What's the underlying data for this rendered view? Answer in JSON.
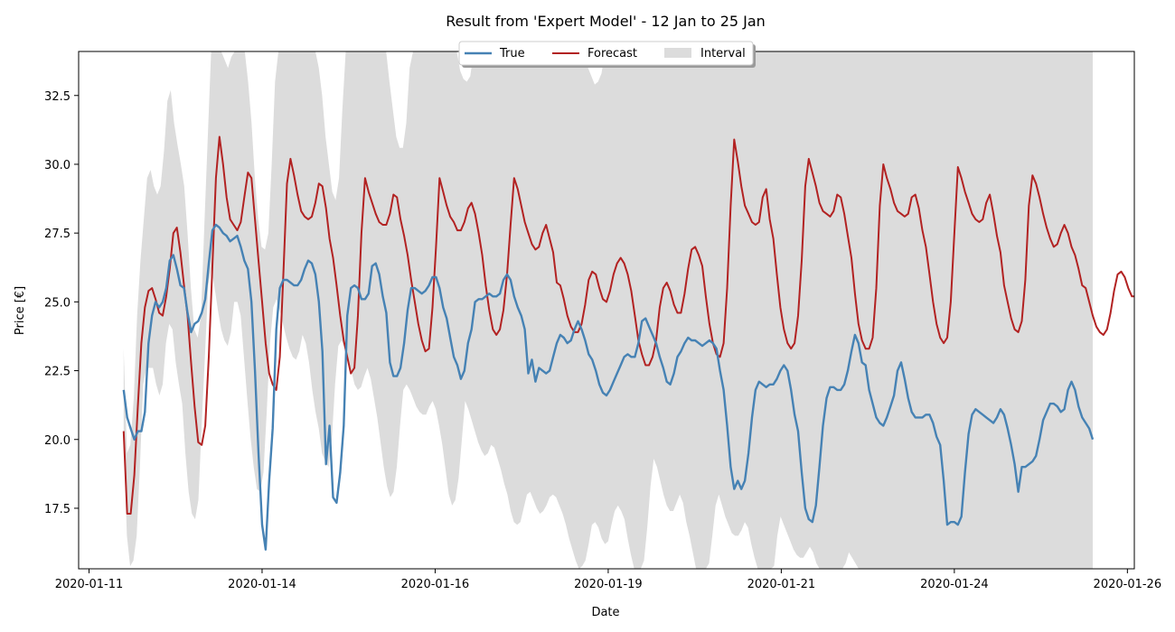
{
  "chart_data": {
    "type": "line",
    "title": "Result from 'Expert Model' - 12 Jan to 25 Jan",
    "xlabel": "Date",
    "ylabel": "Price [€]",
    "x_ticks": [
      "2020-01-11",
      "2020-01-14",
      "2020-01-16",
      "2020-01-19",
      "2020-01-21",
      "2020-01-24",
      "2020-01-26"
    ],
    "x_tick_days": [
      11,
      13.5,
      16,
      18.5,
      21,
      23.5,
      26
    ],
    "y_ticks": [
      "17.5",
      "20.0",
      "22.5",
      "25.0",
      "27.5",
      "30.0",
      "32.5"
    ],
    "xlim_days": [
      10.85,
      26.1
    ],
    "ylim": [
      15.3,
      34.1
    ],
    "grid": false,
    "legend": {
      "placement": "top-center",
      "entries": [
        "True",
        "Forecast",
        "Interval"
      ]
    },
    "colors": {
      "true": "#4682b4",
      "forecast": "#b22222",
      "interval": "#dcdcdc"
    },
    "x_start_day": 11.5,
    "x_end_day": 25.5,
    "series": [
      {
        "name": "True",
        "values": [
          21.8,
          20.8,
          20.4,
          20.0,
          20.3,
          20.3,
          21.0,
          23.5,
          24.5,
          25.0,
          24.8,
          25.0,
          25.5,
          26.5,
          26.7,
          26.2,
          25.6,
          25.5,
          24.6,
          23.9,
          24.2,
          24.3,
          24.6,
          25.1,
          26.4,
          27.6,
          27.8,
          27.7,
          27.5,
          27.4,
          27.2,
          27.3,
          27.4,
          27.0,
          26.5,
          26.2,
          25.0,
          22.5,
          19.5,
          16.9,
          16.0,
          18.5,
          20.4,
          24.0,
          25.5,
          25.8,
          25.8,
          25.7,
          25.6,
          25.6,
          25.8,
          26.2,
          26.5,
          26.4,
          26.0,
          25.0,
          23.2,
          19.1,
          20.5,
          17.9,
          17.7,
          18.8,
          20.5,
          24.5,
          25.5,
          25.6,
          25.5,
          25.1,
          25.1,
          25.3,
          26.3,
          26.4,
          26.0,
          25.2,
          24.6,
          22.8,
          22.3,
          22.3,
          22.6,
          23.5,
          24.7,
          25.5,
          25.5,
          25.4,
          25.3,
          25.4,
          25.6,
          25.9,
          25.9,
          25.5,
          24.8,
          24.4,
          23.7,
          23.0,
          22.7,
          22.2,
          22.5,
          23.5,
          24.0,
          25.0,
          25.1,
          25.1,
          25.2,
          25.3,
          25.2,
          25.2,
          25.3,
          25.8,
          26.0,
          25.8,
          25.2,
          24.8,
          24.5,
          24.0,
          22.4,
          22.9,
          22.1,
          22.6,
          22.5,
          22.4,
          22.5,
          23.0,
          23.5,
          23.8,
          23.7,
          23.5,
          23.6,
          24.0,
          24.3,
          24.0,
          23.6,
          23.1,
          22.9,
          22.5,
          22.0,
          21.7,
          21.6,
          21.8,
          22.1,
          22.4,
          22.7,
          23.0,
          23.1,
          23.0,
          23.0,
          23.5,
          24.3,
          24.4,
          24.1,
          23.8,
          23.5,
          23.0,
          22.6,
          22.1,
          22.0,
          22.4,
          23.0,
          23.2,
          23.5,
          23.7,
          23.6,
          23.6,
          23.5,
          23.4,
          23.5,
          23.6,
          23.5,
          23.3,
          22.5,
          21.8,
          20.5,
          19.0,
          18.2,
          18.5,
          18.2,
          18.5,
          19.5,
          20.8,
          21.8,
          22.1,
          22.0,
          21.9,
          22.0,
          22.0,
          22.2,
          22.5,
          22.7,
          22.5,
          21.8,
          20.9,
          20.3,
          18.8,
          17.5,
          17.1,
          17.0,
          17.6,
          19.0,
          20.5,
          21.5,
          21.9,
          21.9,
          21.8,
          21.8,
          22.0,
          22.5,
          23.2,
          23.8,
          23.5,
          22.8,
          22.7,
          21.8,
          21.3,
          20.8,
          20.6,
          20.5,
          20.8,
          21.2,
          21.6,
          22.5,
          22.8,
          22.2,
          21.5,
          21.0,
          20.8,
          20.8,
          20.8,
          20.9,
          20.9,
          20.6,
          20.1,
          19.8,
          18.5,
          16.9,
          17.0,
          17.0,
          16.9,
          17.2,
          18.8,
          20.2,
          20.9,
          21.1,
          21.0,
          20.9,
          20.8,
          20.7,
          20.6,
          20.8,
          21.1,
          20.9,
          20.4,
          19.8,
          19.1,
          18.1,
          19.0,
          19.0,
          19.1,
          19.2,
          19.4,
          20.0,
          20.7,
          21.0,
          21.3,
          21.3,
          21.2,
          21.0,
          21.1,
          21.8,
          22.1,
          21.8,
          21.2,
          20.8,
          20.6,
          20.4,
          20.0
        ]
      },
      {
        "name": "Forecast",
        "values": [
          20.3,
          17.3,
          17.3,
          18.7,
          21.2,
          23.5,
          24.8,
          25.4,
          25.5,
          25.1,
          24.6,
          24.5,
          25.2,
          26.2,
          27.5,
          27.7,
          26.8,
          25.6,
          24.5,
          22.8,
          21.2,
          19.9,
          19.8,
          20.5,
          23.0,
          26.3,
          29.5,
          31.0,
          30.0,
          28.8,
          28.0,
          27.8,
          27.6,
          27.9,
          28.8,
          29.7,
          29.5,
          28.0,
          26.5,
          25.0,
          23.5,
          22.4,
          22.0,
          21.8,
          23.0,
          26.0,
          29.3,
          30.2,
          29.6,
          28.9,
          28.3,
          28.1,
          28.0,
          28.1,
          28.6,
          29.3,
          29.2,
          28.4,
          27.3,
          26.6,
          25.6,
          24.5,
          23.6,
          23.0,
          22.4,
          22.6,
          24.5,
          27.5,
          29.5,
          29.0,
          28.6,
          28.2,
          27.9,
          27.8,
          27.8,
          28.2,
          28.9,
          28.8,
          28.0,
          27.4,
          26.7,
          25.8,
          25.0,
          24.2,
          23.6,
          23.2,
          23.3,
          24.8,
          27.0,
          29.5,
          29.0,
          28.5,
          28.1,
          27.9,
          27.6,
          27.6,
          27.9,
          28.4,
          28.6,
          28.2,
          27.5,
          26.7,
          25.6,
          24.7,
          24.0,
          23.8,
          24.0,
          24.7,
          26.0,
          27.8,
          29.5,
          29.1,
          28.5,
          27.9,
          27.5,
          27.1,
          26.9,
          27.0,
          27.5,
          27.8,
          27.3,
          26.8,
          25.7,
          25.6,
          25.1,
          24.5,
          24.1,
          23.9,
          23.9,
          24.2,
          24.9,
          25.8,
          26.1,
          26.0,
          25.5,
          25.1,
          25.0,
          25.4,
          26.0,
          26.4,
          26.6,
          26.4,
          26.0,
          25.4,
          24.5,
          23.6,
          23.1,
          22.7,
          22.7,
          23.0,
          23.6,
          24.8,
          25.5,
          25.7,
          25.4,
          24.9,
          24.6,
          24.6,
          25.3,
          26.2,
          26.9,
          27.0,
          26.7,
          26.3,
          25.2,
          24.2,
          23.5,
          23.1,
          23.0,
          23.5,
          25.5,
          28.5,
          30.9,
          30.1,
          29.2,
          28.5,
          28.2,
          27.9,
          27.8,
          27.9,
          28.8,
          29.1,
          28.0,
          27.3,
          26.0,
          24.8,
          24.0,
          23.5,
          23.3,
          23.5,
          24.5,
          26.5,
          29.2,
          30.2,
          29.7,
          29.2,
          28.6,
          28.3,
          28.2,
          28.1,
          28.3,
          28.9,
          28.8,
          28.2,
          27.4,
          26.6,
          25.3,
          24.2,
          23.6,
          23.3,
          23.3,
          23.7,
          25.5,
          28.5,
          30.0,
          29.5,
          29.1,
          28.6,
          28.3,
          28.2,
          28.1,
          28.2,
          28.8,
          28.9,
          28.4,
          27.6,
          27.0,
          26.0,
          25.0,
          24.2,
          23.7,
          23.5,
          23.7,
          25.0,
          27.5,
          29.9,
          29.5,
          29.0,
          28.6,
          28.2,
          28.0,
          27.9,
          28.0,
          28.6,
          28.9,
          28.2,
          27.4,
          26.8,
          25.6,
          25.0,
          24.4,
          24.0,
          23.9,
          24.3,
          25.8,
          28.5,
          29.6,
          29.3,
          28.8,
          28.2,
          27.7,
          27.3,
          27.0,
          27.1,
          27.5,
          27.8,
          27.5,
          27.0,
          26.7,
          26.2,
          25.6,
          25.5,
          25.0,
          24.5,
          24.1,
          23.9,
          23.8,
          24.0,
          24.6,
          25.4,
          26.0,
          26.1,
          25.9,
          25.5,
          25.2,
          25.2,
          25.5,
          26.0,
          26.5,
          26.7,
          26.5,
          26.3,
          26.0,
          25.5
        ]
      }
    ],
    "interval_lower": [
      20.0,
      16.5,
      15.4,
      15.6,
      16.5,
      19.0,
      22.0,
      22.6,
      22.6,
      22.6,
      22.0,
      21.6,
      22.0,
      23.5,
      24.2,
      24.0,
      22.8,
      22.0,
      21.3,
      19.5,
      18.1,
      17.3,
      17.1,
      17.8,
      20.5,
      23.0,
      25.6,
      26.2,
      25.5,
      24.7,
      24.0,
      23.6,
      23.4,
      23.9,
      25.0,
      25.0,
      24.5,
      23.0,
      21.5,
      20.1,
      19.0,
      18.2,
      18.1,
      18.8,
      21.0,
      23.5,
      24.8,
      25.1,
      24.7,
      24.2,
      23.7,
      23.3,
      23.0,
      22.9,
      23.2,
      23.8,
      23.5,
      22.8,
      21.8,
      21.0,
      20.4,
      19.5,
      19.2,
      19.0,
      20.0,
      22.0,
      23.4,
      23.6,
      23.3,
      22.9,
      22.5,
      22.0,
      21.8,
      21.9,
      22.3,
      22.6,
      22.2,
      21.5,
      20.8,
      19.9,
      19.0,
      18.3,
      17.9,
      18.1,
      19.0,
      20.5,
      21.8,
      22.0,
      21.8,
      21.5,
      21.2,
      21.0,
      20.9,
      20.9,
      21.2,
      21.4,
      21.1,
      20.5,
      19.8,
      18.9,
      18.0,
      17.6,
      17.8,
      18.6,
      20.0,
      21.4,
      21.1,
      20.7,
      20.3,
      19.9,
      19.6,
      19.4,
      19.5,
      19.8,
      19.7,
      19.3,
      18.9,
      18.4,
      18.0,
      17.4,
      17.0,
      16.9,
      17.0,
      17.5,
      18.0,
      18.1,
      17.8,
      17.5,
      17.3,
      17.4,
      17.6,
      17.9,
      18.0,
      17.9,
      17.6,
      17.3,
      16.9,
      16.4,
      16.0,
      15.6,
      15.3,
      15.4,
      15.6,
      16.2,
      16.9,
      17.0,
      16.8,
      16.4,
      16.2,
      16.3,
      16.9,
      17.4,
      17.6,
      17.4,
      17.1,
      16.4,
      15.8,
      15.3,
      15.3,
      15.3,
      15.6,
      16.8,
      18.3,
      19.3,
      19.0,
      18.5,
      18.0,
      17.6,
      17.4,
      17.4,
      17.7,
      18.0,
      17.7,
      17.0,
      16.5,
      15.9,
      15.3,
      15.3,
      15.3,
      15.3,
      15.5,
      16.5,
      17.6,
      18.0,
      17.6,
      17.2,
      16.9,
      16.6,
      16.5,
      16.5,
      16.7,
      17.0,
      16.8,
      16.2,
      15.7,
      15.3,
      15.3,
      15.3,
      15.3,
      15.3,
      15.4,
      16.5,
      17.2,
      16.9,
      16.6,
      16.3,
      16.0,
      15.8,
      15.7,
      15.7,
      15.9,
      16.1,
      15.9,
      15.5,
      15.3,
      15.3,
      15.3,
      15.3,
      15.3,
      15.3,
      15.3,
      15.3,
      15.5,
      15.9,
      15.7,
      15.5,
      15.3,
      15.3,
      15.3,
      15.3,
      15.3,
      15.3,
      15.3,
      15.3,
      15.3,
      15.3,
      15.3,
      15.3,
      15.3,
      15.3,
      15.3,
      15.3,
      15.3,
      15.3,
      15.3,
      15.3,
      15.3,
      15.3,
      15.3,
      15.3,
      15.3,
      15.3,
      15.3,
      15.3,
      15.3,
      15.3,
      15.3,
      15.3,
      15.3,
      15.3,
      15.3,
      15.3,
      15.3,
      15.3,
      15.3,
      15.3,
      15.3,
      15.3,
      15.3,
      15.3,
      15.3,
      15.3,
      15.3,
      15.3,
      15.3,
      15.3,
      15.3,
      15.3,
      15.3,
      15.3,
      15.3,
      15.3,
      15.3,
      15.3,
      15.3,
      15.3,
      15.3,
      15.3,
      15.3,
      15.3,
      15.3,
      15.3,
      15.3,
      15.3,
      15.3,
      15.3,
      15.3,
      15.3,
      15.3
    ],
    "interval_upper": [
      23.3,
      19.5,
      19.8,
      21.5,
      24.5,
      26.5,
      28.0,
      29.5,
      29.8,
      29.2,
      28.9,
      29.2,
      30.5,
      32.3,
      32.7,
      31.5,
      30.7,
      30.0,
      29.2,
      27.5,
      25.5,
      24.0,
      23.7,
      24.5,
      27.8,
      31.0,
      34.1,
      34.1,
      34.1,
      34.1,
      33.8,
      33.5,
      33.9,
      34.1,
      34.1,
      34.1,
      34.1,
      33.0,
      31.5,
      29.5,
      28.0,
      27.0,
      26.9,
      27.5,
      30.0,
      33.0,
      34.1,
      34.1,
      34.1,
      34.1,
      34.1,
      34.1,
      34.1,
      34.1,
      34.1,
      34.1,
      34.1,
      34.1,
      33.5,
      32.5,
      31.0,
      30.0,
      29.0,
      28.7,
      29.5,
      32.0,
      34.1,
      34.1,
      34.1,
      34.1,
      34.1,
      34.1,
      34.1,
      34.1,
      34.1,
      34.1,
      34.1,
      34.1,
      34.1,
      33.0,
      32.0,
      31.0,
      30.6,
      30.6,
      31.5,
      33.5,
      34.1,
      34.1,
      34.1,
      34.1,
      34.1,
      34.1,
      34.1,
      34.1,
      34.1,
      34.1,
      34.1,
      34.1,
      34.1,
      34.1,
      33.4,
      33.1,
      33.0,
      33.2,
      34.1,
      34.1,
      34.1,
      34.1,
      34.1,
      34.1,
      34.1,
      34.1,
      34.1,
      34.1,
      34.1,
      34.1,
      34.1,
      34.1,
      34.1,
      34.1,
      34.1,
      34.1,
      34.1,
      34.1,
      34.1,
      34.1,
      34.1,
      34.1,
      34.1,
      34.1,
      34.1,
      34.1,
      34.1,
      34.1,
      34.1,
      34.1,
      34.1,
      33.8,
      33.5,
      33.2,
      32.9,
      33.0,
      33.3,
      34.1,
      34.1,
      34.1,
      34.1,
      34.1,
      34.1,
      34.1,
      34.1,
      34.1,
      34.1,
      34.1,
      34.1,
      34.1,
      34.1,
      34.1,
      34.1,
      34.1,
      34.1,
      34.1,
      34.1,
      34.1,
      34.1,
      34.1,
      34.1,
      34.1,
      34.1,
      34.1,
      34.1,
      34.1,
      34.1,
      34.1,
      34.1,
      34.1,
      34.1,
      34.1,
      34.1,
      34.1,
      34.1,
      34.1,
      34.1,
      34.1,
      34.1,
      34.1,
      34.1,
      34.1,
      34.1,
      34.1,
      34.1,
      34.1,
      34.1,
      34.1,
      34.1,
      34.1,
      34.1,
      34.1,
      34.1,
      34.1,
      34.1,
      34.1,
      34.1,
      34.1,
      34.1,
      34.1,
      34.1,
      34.1,
      34.1,
      34.1,
      34.1,
      34.1,
      34.1,
      34.1,
      34.1,
      34.1,
      34.1,
      34.1,
      34.1,
      34.1,
      34.1,
      34.1,
      34.1,
      34.1,
      34.1,
      34.1,
      34.1,
      34.1,
      34.1,
      34.1,
      34.1,
      34.1,
      34.1,
      34.1,
      34.1,
      34.1,
      34.1,
      34.1,
      34.1,
      34.1,
      34.1,
      34.1,
      34.1,
      34.1,
      34.1,
      34.1,
      34.1,
      34.1,
      34.1,
      34.1,
      34.1,
      34.1,
      34.1,
      34.1,
      34.1,
      34.1,
      34.1,
      34.1,
      34.1,
      34.1,
      34.1,
      34.1,
      34.1,
      34.1,
      34.1,
      34.1,
      34.1,
      34.1,
      34.1,
      34.1,
      34.1,
      34.1,
      34.1,
      34.1,
      34.1,
      34.1,
      34.1,
      34.1,
      34.1,
      34.1,
      34.1,
      34.1,
      34.1,
      34.1,
      34.1,
      34.1,
      34.1,
      34.1,
      34.1
    ]
  }
}
